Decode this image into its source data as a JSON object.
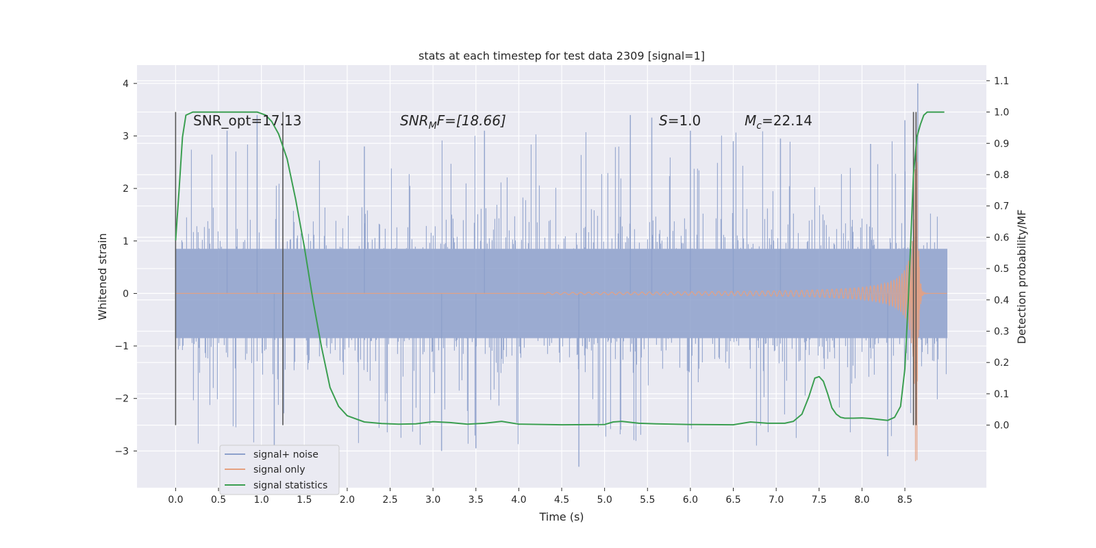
{
  "chart_data": {
    "type": "line",
    "title": "stats at each timestep for test data 2309 [signal=1]",
    "xlabel": "Time (s)",
    "ylabel": "Whitened strain",
    "ylabel_right": "Detection probability/MF",
    "xlim": [
      -0.45,
      9.45
    ],
    "ylim": [
      -3.7,
      4.35
    ],
    "ylim_right": [
      -0.2,
      1.15
    ],
    "x_ticks": [
      "0.0",
      "0.5",
      "1.0",
      "1.5",
      "2.0",
      "2.5",
      "3.0",
      "3.5",
      "4.0",
      "4.5",
      "5.0",
      "5.5",
      "6.0",
      "6.5",
      "7.0",
      "7.5",
      "8.0",
      "8.5"
    ],
    "y_ticks": [
      "4",
      "3",
      "2",
      "1",
      "0",
      "−1",
      "−2",
      "−3"
    ],
    "y_ticks_right": [
      "1.1",
      "1.0",
      "0.9",
      "0.8",
      "0.7",
      "0.6",
      "0.5",
      "0.4",
      "0.3",
      "0.2",
      "0.1",
      "0.0"
    ],
    "grid": true,
    "legend_position": "lower-left",
    "annotations": {
      "snr_opt": "SNR_opt=17.13",
      "snr_mf_main": "SNR",
      "snr_mf_sub": "M",
      "snr_mf_rest": "F=[18.66]",
      "s_italic": "S",
      "s_rest": "=1.0",
      "mc_main": "M",
      "mc_sub": "c",
      "mc_rest": "=22.14"
    },
    "series": [
      {
        "name": "signal+ noise",
        "color": "#8da0cb",
        "x_range": [
          0.0,
          8.99
        ],
        "band_amplitude": 1.0,
        "peak_samples": [
          [
            0.6,
            3.1
          ],
          [
            0.95,
            3.4
          ],
          [
            2.2,
            2.8
          ],
          [
            3.6,
            3.1
          ],
          [
            5.3,
            3.4
          ],
          [
            5.55,
            3.35
          ],
          [
            6.0,
            3.1
          ],
          [
            6.5,
            2.9
          ],
          [
            7.05,
            2.95
          ],
          [
            8.1,
            2.85
          ],
          [
            8.5,
            3.3
          ],
          [
            8.65,
            4.0
          ],
          [
            4.7,
            -3.3
          ],
          [
            8.3,
            -3.1
          ],
          [
            1.15,
            -2.9
          ],
          [
            3.1,
            -3.0
          ],
          [
            3.5,
            -2.95
          ]
        ]
      },
      {
        "name": "signal only",
        "color": "#e5a07f",
        "x_range": [
          0.0,
          8.99
        ],
        "merger_time": 8.64,
        "peak_amplitude": 3.2
      },
      {
        "name": "signal statistics",
        "color": "#3a9e50",
        "x": [
          0.0,
          0.04,
          0.08,
          0.12,
          0.2,
          0.35,
          0.6,
          0.8,
          0.95,
          1.05,
          1.12,
          1.2,
          1.3,
          1.4,
          1.5,
          1.6,
          1.7,
          1.8,
          1.9,
          2.0,
          2.2,
          2.4,
          2.6,
          2.8,
          3.0,
          3.2,
          3.4,
          3.6,
          3.8,
          4.0,
          4.5,
          5.0,
          5.1,
          5.2,
          5.4,
          5.6,
          6.0,
          6.5,
          6.7,
          6.9,
          7.1,
          7.2,
          7.3,
          7.38,
          7.45,
          7.5,
          7.55,
          7.6,
          7.65,
          7.7,
          7.75,
          7.8,
          7.9,
          8.0,
          8.1,
          8.2,
          8.3,
          8.38,
          8.45,
          8.5,
          8.54,
          8.57,
          8.6,
          8.64,
          8.68,
          8.72,
          8.76,
          8.8,
          8.9,
          8.96
        ],
        "values": [
          0.59,
          0.75,
          0.92,
          0.99,
          1.0,
          1.0,
          1.0,
          1.0,
          1.0,
          0.99,
          0.97,
          0.93,
          0.85,
          0.72,
          0.57,
          0.4,
          0.25,
          0.12,
          0.06,
          0.03,
          0.01,
          0.005,
          0.003,
          0.004,
          0.011,
          0.008,
          0.003,
          0.006,
          0.012,
          0.003,
          0.001,
          0.002,
          0.01,
          0.012,
          0.006,
          0.004,
          0.002,
          0.001,
          0.01,
          0.006,
          0.006,
          0.012,
          0.035,
          0.09,
          0.15,
          0.155,
          0.14,
          0.1,
          0.055,
          0.035,
          0.025,
          0.022,
          0.022,
          0.023,
          0.021,
          0.018,
          0.015,
          0.025,
          0.06,
          0.18,
          0.4,
          0.6,
          0.8,
          0.92,
          0.96,
          0.99,
          1.0,
          1.0,
          1.0,
          1.0
        ]
      }
    ],
    "vertical_markers": [
      {
        "x": 0.0,
        "color": "#555555"
      },
      {
        "x": 1.25,
        "color": "#555555"
      },
      {
        "x": 8.6,
        "color": "#555555"
      },
      {
        "x": 8.63,
        "color": "#555555"
      }
    ]
  }
}
